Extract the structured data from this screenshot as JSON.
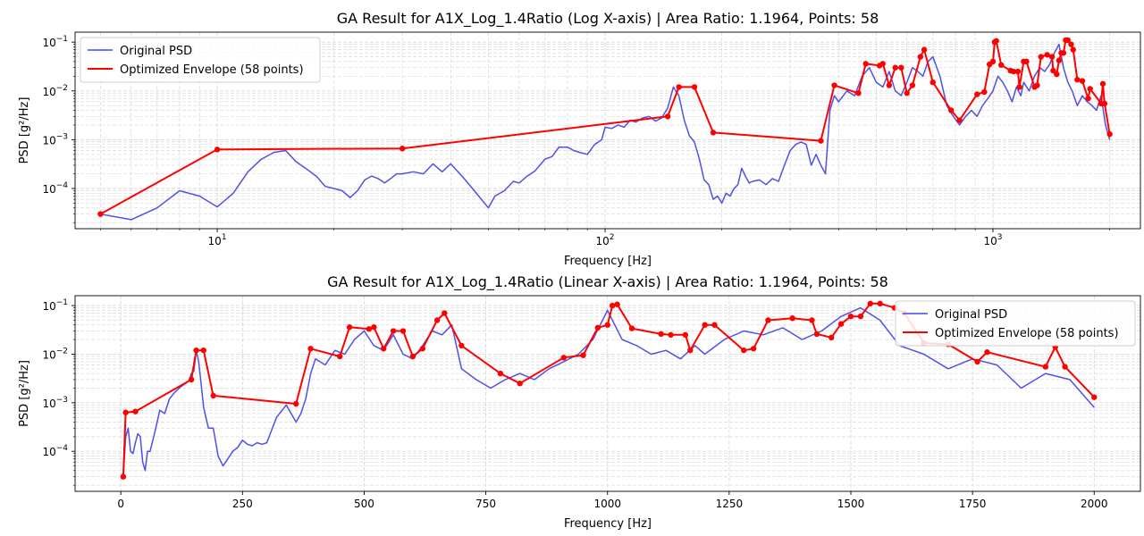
{
  "colors": {
    "original": "#4747e6",
    "envelope": "#ff0000",
    "grid": "#d9d9d9"
  },
  "chart_data": [
    {
      "type": "line",
      "title": "GA Result for A1X_Log_1.4Ratio (Log X-axis) | Area Ratio: 1.1964, Points: 58",
      "xlabel": "Frequency [Hz]",
      "ylabel": "PSD [g²/Hz]",
      "xscale": "log",
      "yscale": "log",
      "xlim": [
        4.3,
        2400
      ],
      "ylim": [
        1.5e-05,
        0.16
      ],
      "x_ticks": [
        {
          "value": 10,
          "base": "10",
          "exp": "1"
        },
        {
          "value": 100,
          "base": "10",
          "exp": "2"
        },
        {
          "value": 1000,
          "base": "10",
          "exp": "3"
        }
      ],
      "y_ticks": [
        {
          "value": 0.0001,
          "base": "10",
          "exp": "−4"
        },
        {
          "value": 0.001,
          "base": "10",
          "exp": "−3"
        },
        {
          "value": 0.01,
          "base": "10",
          "exp": "−2"
        },
        {
          "value": 0.1,
          "base": "10",
          "exp": "−1"
        }
      ],
      "grid": true,
      "legend_position": "top-left",
      "series": [
        {
          "name": "Original PSD",
          "color": "#4747e6",
          "style": "line",
          "x": [
            5,
            6,
            7,
            8,
            9,
            10,
            11,
            12,
            13,
            14,
            15,
            16,
            17,
            18,
            19,
            20,
            21,
            22,
            23,
            24,
            25,
            26,
            27,
            28,
            29,
            30,
            32,
            34,
            36,
            38,
            40,
            43,
            46,
            50,
            52,
            55,
            58,
            60,
            63,
            66,
            70,
            73,
            76,
            80,
            83,
            86,
            90,
            94,
            98,
            100,
            104,
            108,
            112,
            116,
            120,
            125,
            130,
            135,
            140,
            145,
            150,
            155,
            160,
            165,
            170,
            175,
            180,
            185,
            190,
            195,
            200,
            205,
            210,
            215,
            220,
            225,
            230,
            235,
            240,
            250,
            260,
            270,
            280,
            290,
            300,
            310,
            320,
            330,
            340,
            350,
            360,
            370,
            380,
            390,
            400,
            420,
            440,
            460,
            480,
            500,
            520,
            540,
            560,
            580,
            600,
            620,
            640,
            660,
            680,
            700,
            730,
            760,
            790,
            820,
            850,
            880,
            910,
            940,
            970,
            1000,
            1030,
            1060,
            1090,
            1120,
            1150,
            1180,
            1200,
            1240,
            1280,
            1320,
            1360,
            1400,
            1440,
            1480,
            1520,
            1560,
            1600,
            1650,
            1700,
            1750,
            1800,
            1850,
            1900,
            1950,
            2000
          ],
          "y": [
            3e-05,
            2.3e-05,
            4e-05,
            9e-05,
            7e-05,
            4.2e-05,
            8e-05,
            0.00022,
            0.0004,
            0.00055,
            0.0006,
            0.00035,
            0.00025,
            0.00018,
            0.00011,
            0.0001,
            9e-05,
            6.5e-05,
            9e-05,
            0.00015,
            0.00018,
            0.00016,
            0.00013,
            0.00016,
            0.0002,
            0.0002,
            0.00022,
            0.0002,
            0.00032,
            0.00022,
            0.00032,
            0.00017,
            9e-05,
            4e-05,
            7e-05,
            9e-05,
            0.00014,
            0.00013,
            0.00018,
            0.00023,
            0.0004,
            0.00045,
            0.0007,
            0.0007,
            0.0006,
            0.00055,
            0.0005,
            0.0008,
            0.001,
            0.0018,
            0.0017,
            0.002,
            0.0018,
            0.0025,
            0.0023,
            0.0028,
            0.003,
            0.0024,
            0.0028,
            0.0045,
            0.012,
            0.008,
            0.0025,
            0.0012,
            0.0009,
            0.0004,
            0.00015,
            0.00012,
            6e-05,
            7e-05,
            5e-05,
            8e-05,
            7e-05,
            0.0001,
            0.00012,
            0.00026,
            0.00018,
            0.00013,
            0.00014,
            0.00015,
            0.00012,
            0.00016,
            0.00014,
            0.0003,
            0.0006,
            0.0008,
            0.0009,
            0.0008,
            0.0003,
            0.0005,
            0.0003,
            0.0002,
            0.004,
            0.008,
            0.006,
            0.01,
            0.008,
            0.02,
            0.03,
            0.015,
            0.012,
            0.025,
            0.01,
            0.008,
            0.015,
            0.03,
            0.025,
            0.02,
            0.04,
            0.05,
            0.02,
            0.005,
            0.003,
            0.002,
            0.003,
            0.004,
            0.003,
            0.005,
            0.007,
            0.01,
            0.02,
            0.015,
            0.01,
            0.006,
            0.012,
            0.008,
            0.015,
            0.01,
            0.02,
            0.03,
            0.025,
            0.035,
            0.06,
            0.09,
            0.03,
            0.015,
            0.01,
            0.005,
            0.008,
            0.006,
            0.005,
            0.004,
            0.008,
            0.002,
            0.001
          ]
        },
        {
          "name": "Optimized Envelope (58 points)",
          "color": "#ff0000",
          "style": "line-marker",
          "x": [
            5,
            10,
            30,
            145,
            155,
            170,
            190,
            360,
            390,
            450,
            470,
            510,
            520,
            540,
            560,
            580,
            600,
            620,
            650,
            665,
            700,
            780,
            820,
            910,
            950,
            980,
            1000,
            1010,
            1020,
            1050,
            1110,
            1130,
            1160,
            1170,
            1200,
            1220,
            1280,
            1300,
            1330,
            1380,
            1420,
            1430,
            1460,
            1480,
            1500,
            1520,
            1540,
            1560,
            1590,
            1610,
            1650,
            1700,
            1760,
            1780,
            1900,
            1920,
            1940,
            2000
          ],
          "y": [
            3e-05,
            0.00063,
            0.00066,
            0.003,
            0.012,
            0.012,
            0.0014,
            0.00095,
            0.013,
            0.009,
            0.036,
            0.033,
            0.036,
            0.013,
            0.03,
            0.03,
            0.009,
            0.013,
            0.05,
            0.07,
            0.015,
            0.004,
            0.0025,
            0.0085,
            0.0095,
            0.035,
            0.04,
            0.1,
            0.106,
            0.034,
            0.026,
            0.025,
            0.025,
            0.012,
            0.04,
            0.04,
            0.012,
            0.013,
            0.05,
            0.055,
            0.05,
            0.026,
            0.022,
            0.042,
            0.06,
            0.06,
            0.11,
            0.11,
            0.09,
            0.07,
            0.017,
            0.016,
            0.007,
            0.011,
            0.0055,
            0.014,
            0.0055,
            0.0013
          ]
        }
      ]
    },
    {
      "type": "line",
      "title": "GA Result for A1X_Log_1.4Ratio (Linear X-axis) | Area Ratio: 1.1964, Points: 58",
      "xlabel": "Frequency [Hz]",
      "ylabel": "PSD [g²/Hz]",
      "xscale": "linear",
      "yscale": "log",
      "xlim": [
        -94,
        2095
      ],
      "ylim": [
        1.5e-05,
        0.16
      ],
      "x_ticks": [
        {
          "value": 0,
          "label": "0"
        },
        {
          "value": 250,
          "label": "250"
        },
        {
          "value": 500,
          "label": "500"
        },
        {
          "value": 750,
          "label": "750"
        },
        {
          "value": 1000,
          "label": "1000"
        },
        {
          "value": 1250,
          "label": "1250"
        },
        {
          "value": 1500,
          "label": "1500"
        },
        {
          "value": 1750,
          "label": "1750"
        },
        {
          "value": 2000,
          "label": "2000"
        }
      ],
      "y_ticks": [
        {
          "value": 0.0001,
          "base": "10",
          "exp": "−4"
        },
        {
          "value": 0.001,
          "base": "10",
          "exp": "−3"
        },
        {
          "value": 0.01,
          "base": "10",
          "exp": "−2"
        },
        {
          "value": 0.1,
          "base": "10",
          "exp": "−1"
        }
      ],
      "grid": true,
      "legend_position": "top-right",
      "series": [
        {
          "name": "Original PSD",
          "color": "#4747e6",
          "style": "line",
          "x": [
            5,
            10,
            15,
            20,
            25,
            30,
            35,
            40,
            45,
            50,
            55,
            60,
            70,
            80,
            90,
            100,
            110,
            120,
            130,
            140,
            145,
            150,
            155,
            160,
            165,
            170,
            180,
            190,
            200,
            210,
            220,
            230,
            240,
            250,
            260,
            270,
            280,
            290,
            300,
            320,
            340,
            360,
            370,
            380,
            390,
            400,
            420,
            440,
            460,
            480,
            500,
            520,
            540,
            560,
            580,
            600,
            620,
            640,
            660,
            680,
            700,
            730,
            760,
            790,
            820,
            850,
            880,
            910,
            940,
            970,
            1000,
            1030,
            1060,
            1090,
            1120,
            1150,
            1180,
            1200,
            1240,
            1280,
            1320,
            1360,
            1400,
            1440,
            1480,
            1520,
            1560,
            1600,
            1650,
            1700,
            1750,
            1800,
            1850,
            1900,
            1950,
            2000
          ],
          "y": [
            3e-05,
            0.0002,
            0.0003,
            0.0001,
            9e-05,
            0.00015,
            0.00023,
            0.0002,
            6e-05,
            4e-05,
            0.0001,
            0.0001,
            0.00025,
            0.0007,
            0.0006,
            0.0012,
            0.0016,
            0.002,
            0.0024,
            0.0028,
            0.004,
            0.0045,
            0.012,
            0.007,
            0.0025,
            0.0008,
            0.0003,
            0.0003,
            8e-05,
            5e-05,
            7e-05,
            0.0001,
            0.00012,
            0.00017,
            0.00014,
            0.00013,
            0.00015,
            0.00014,
            0.00015,
            0.0005,
            0.0009,
            0.0004,
            0.0006,
            0.0012,
            0.004,
            0.008,
            0.006,
            0.012,
            0.01,
            0.02,
            0.03,
            0.015,
            0.012,
            0.025,
            0.01,
            0.008,
            0.015,
            0.03,
            0.025,
            0.04,
            0.005,
            0.003,
            0.002,
            0.003,
            0.004,
            0.003,
            0.005,
            0.007,
            0.01,
            0.02,
            0.08,
            0.02,
            0.015,
            0.01,
            0.012,
            0.008,
            0.015,
            0.01,
            0.02,
            0.03,
            0.025,
            0.035,
            0.02,
            0.03,
            0.06,
            0.09,
            0.05,
            0.015,
            0.01,
            0.005,
            0.008,
            0.006,
            0.002,
            0.004,
            0.003,
            0.0008
          ]
        },
        {
          "name": "Optimized Envelope (58 points)",
          "color": "#ff0000",
          "style": "line-marker",
          "x": [
            5,
            10,
            30,
            145,
            155,
            170,
            190,
            360,
            390,
            450,
            470,
            510,
            520,
            540,
            560,
            580,
            600,
            620,
            650,
            665,
            700,
            780,
            820,
            910,
            950,
            980,
            1000,
            1010,
            1020,
            1050,
            1110,
            1130,
            1160,
            1170,
            1200,
            1220,
            1280,
            1300,
            1330,
            1380,
            1420,
            1430,
            1460,
            1480,
            1500,
            1520,
            1540,
            1560,
            1590,
            1610,
            1650,
            1700,
            1760,
            1780,
            1900,
            1920,
            1940,
            2000
          ],
          "y": [
            3e-05,
            0.00063,
            0.00066,
            0.003,
            0.012,
            0.012,
            0.0014,
            0.00095,
            0.013,
            0.009,
            0.036,
            0.033,
            0.036,
            0.013,
            0.03,
            0.03,
            0.009,
            0.013,
            0.05,
            0.07,
            0.015,
            0.004,
            0.0025,
            0.0085,
            0.0095,
            0.035,
            0.04,
            0.1,
            0.106,
            0.034,
            0.026,
            0.025,
            0.025,
            0.012,
            0.04,
            0.04,
            0.012,
            0.013,
            0.05,
            0.055,
            0.05,
            0.026,
            0.022,
            0.042,
            0.06,
            0.06,
            0.11,
            0.11,
            0.09,
            0.07,
            0.017,
            0.016,
            0.007,
            0.011,
            0.0055,
            0.014,
            0.0055,
            0.0013
          ]
        }
      ]
    }
  ]
}
